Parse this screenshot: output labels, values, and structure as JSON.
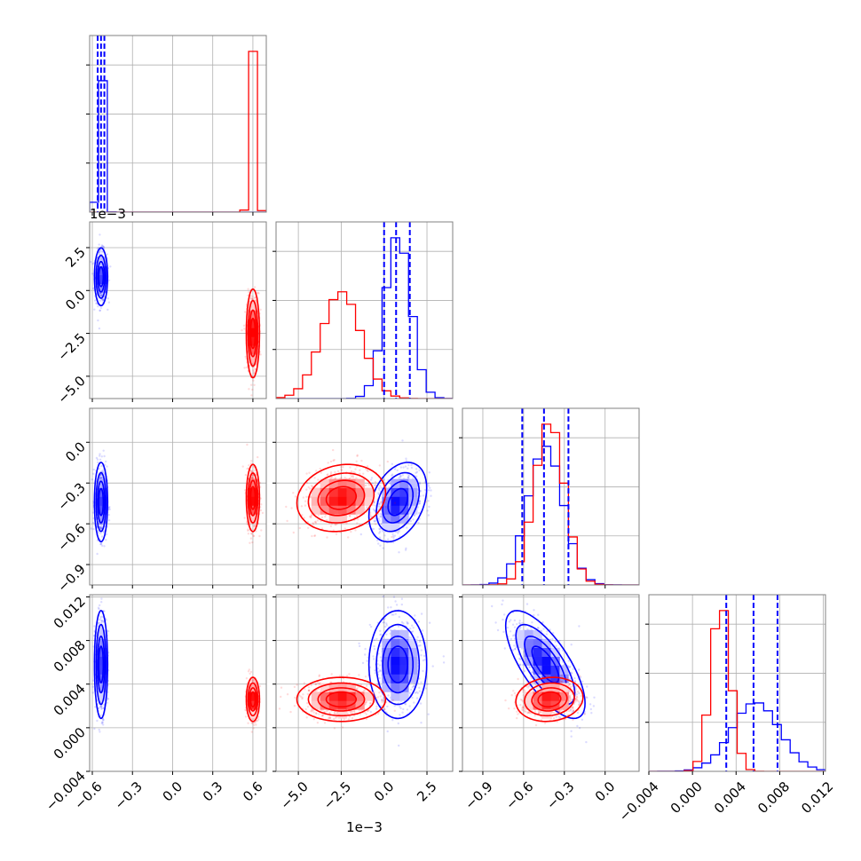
{
  "chart_data": {
    "type": "corner",
    "colors": {
      "series_a": "#0000ff",
      "series_b": "#ff0000",
      "grid": "#b0b0b0",
      "frame": "#808080"
    },
    "grid": true,
    "params": [
      {
        "range": [
          -0.62,
          0.7
        ],
        "ticks": [
          -0.6,
          -0.3,
          0.0,
          0.3,
          0.6
        ],
        "tick_labels": [
          "−0.6",
          "−0.3",
          "0.0",
          "0.3",
          "0.6"
        ],
        "offset_label": ""
      },
      {
        "range": [
          -6.3,
          4.0
        ],
        "ticks": [
          -5.0,
          -2.5,
          0.0,
          2.5
        ],
        "tick_labels": [
          "−5.0",
          "−2.5",
          "0.0",
          "2.5"
        ],
        "offset_label": "1e−3"
      },
      {
        "range": [
          -1.05,
          0.25
        ],
        "ticks": [
          -0.9,
          -0.6,
          -0.3,
          0.0
        ],
        "tick_labels": [
          "−0.9",
          "−0.6",
          "−0.3",
          "0.0"
        ],
        "offset_label": ""
      },
      {
        "range": [
          -0.004,
          0.0122
        ],
        "ticks": [
          -0.004,
          0.0,
          0.004,
          0.008,
          0.012
        ],
        "tick_labels": [
          "−0.004",
          "0.000",
          "0.004",
          "0.008",
          "0.012"
        ],
        "offset_label": ""
      }
    ],
    "series": [
      {
        "color": "#0000ff",
        "mean": [
          -0.535,
          0.8,
          -0.44,
          0.0058
        ],
        "sd": [
          0.022,
          0.75,
          0.13,
          0.0022
        ],
        "corr": {
          "0-1": 0.0,
          "0-2": 0.0,
          "0-3": 0.0,
          "1-2": 0.35,
          "1-3": 0.0,
          "2-3": -0.72
        },
        "quantiles": [
          [
            -0.56,
            -0.535,
            -0.51
          ],
          [
            0.0,
            0.7,
            1.5
          ],
          [
            -0.61,
            -0.45,
            -0.27
          ],
          [
            0.0031,
            0.0056,
            0.0078
          ]
        ]
      },
      {
        "color": "#ff0000",
        "mean": [
          0.6,
          -2.5,
          -0.41,
          0.0026
        ],
        "sd": [
          0.022,
          1.15,
          0.11,
          0.0009
        ],
        "corr": {
          "0-1": 0.0,
          "0-2": 0.0,
          "0-3": 0.0,
          "1-2": 0.15,
          "1-3": 0.0,
          "2-3": 0.1
        },
        "quantiles": []
      }
    ],
    "title": "",
    "xlabel": "",
    "ylabel": ""
  }
}
